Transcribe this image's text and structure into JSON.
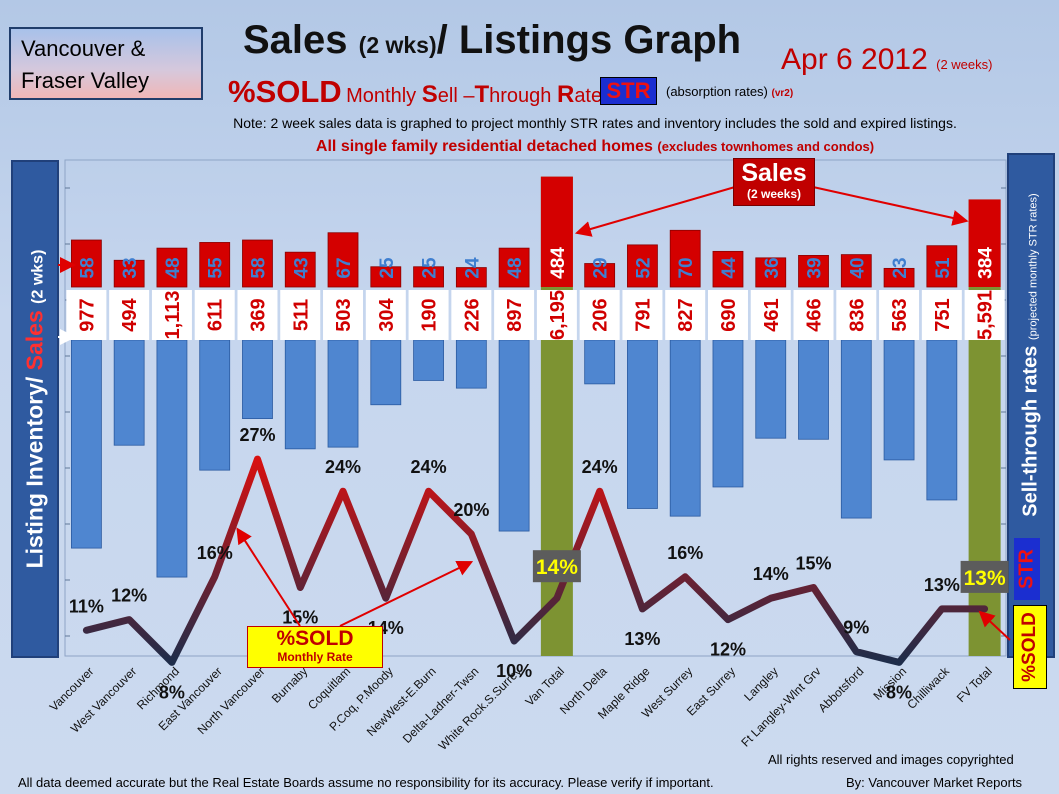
{
  "header": {
    "region_line1": "Vancouver &",
    "region_line2": "Fraser Valley",
    "title_a": "Sales",
    "title_b": "(2 wks)",
    "title_c": "/ Listings Graph",
    "date": "Apr 6 2012",
    "date_note": "(2 weeks)",
    "sold_label": "%SOLD",
    "subtitle_parts": [
      "Monthly ",
      "S",
      "ell –",
      "T",
      "hrough ",
      "R",
      "ates"
    ],
    "str_badge": "STR",
    "absorption": "(absorption rates)",
    "version": "(vr2)",
    "note": "Note: 2 week sales data is graphed to project monthly STR rates and inventory includes the sold and expired listings.",
    "scope": "All single family residential detached homes",
    "scope_note": "(excludes townhomes and condos)"
  },
  "axes": {
    "left_label_a": "Listing Inventory",
    "left_label_b": "/ ",
    "left_label_c": "Sales",
    "left_label_d": "(2 wks)",
    "right_label": "Sell-through rates",
    "right_label_note": "(projected monthly STR rates)",
    "right_str": "STR",
    "right_sold": "%SOLD"
  },
  "callouts": {
    "sales_line1": "Sales",
    "sales_line2": "(2 weeks)",
    "sold_line1": "%SOLD",
    "sold_line2": "Monthly Rate"
  },
  "footer": {
    "rights": "All rights reserved and  images copyrighted",
    "disclaimer": "All data deemed accurate but the Real Estate Boards assume no responsibility for its accuracy.  Please verify if important.",
    "credit": "By: Vancouver Market Reports"
  },
  "colors": {
    "inventory_bar": "#4f86d0",
    "total_bar": "#7d9332",
    "sales_bar": "#d40000",
    "str_line_high": "#d81010",
    "str_line_low": "#1e2d4a",
    "panel": "#2f5aa0"
  },
  "chart_data": {
    "type": "bar",
    "categories": [
      "Vancouver",
      "West Vancouver",
      "Richmond",
      "East Vancouver",
      "North Vancouver",
      "Burnaby",
      "Coquitlam",
      "P.Coq, P.Moody",
      "NewWest-E.Burn",
      "Delta-Ladner-Twsn",
      "White Rock.S.Surrey",
      "Van Total",
      "North Delta",
      "Maple Ridge",
      "West Surrey",
      "East Surrey",
      "Langley",
      "Ft Langley-Wlnt Grv",
      "Abbotsford",
      "Mission",
      "Chilliwack",
      "FV Total"
    ],
    "series": [
      {
        "name": "Listing Inventory",
        "labels": [
          "977",
          "494",
          "1,113",
          "611",
          "369",
          "511",
          "503",
          "304",
          "190",
          "226",
          "897",
          "6,195",
          "206",
          "791",
          "827",
          "690",
          "461",
          "466",
          "836",
          "563",
          "751",
          "5,591"
        ],
        "values": [
          977,
          494,
          1113,
          611,
          369,
          511,
          503,
          304,
          190,
          226,
          897,
          6195,
          206,
          791,
          827,
          690,
          461,
          466,
          836,
          563,
          751,
          5591
        ]
      },
      {
        "name": "Sales",
        "values": [
          58,
          33,
          48,
          55,
          58,
          43,
          67,
          25,
          25,
          24,
          48,
          484,
          29,
          52,
          70,
          44,
          36,
          39,
          40,
          23,
          51,
          384
        ]
      },
      {
        "name": "%SOLD",
        "values": [
          11,
          12,
          8,
          16,
          27,
          15,
          24,
          14,
          24,
          20,
          10,
          14,
          24,
          13,
          16,
          12,
          14,
          15,
          9,
          8,
          13,
          13
        ]
      }
    ],
    "totals": [
      "Van Total",
      "FV Total"
    ]
  }
}
